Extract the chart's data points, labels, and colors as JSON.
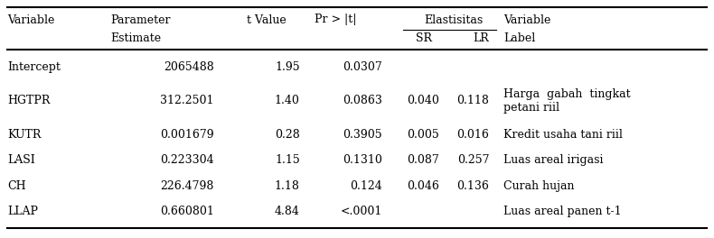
{
  "header_row1": [
    "Variable",
    "Parameter",
    "t Value",
    "Pr > |t|",
    "Elastisitas",
    "",
    "Variable"
  ],
  "header_row2": [
    "",
    "Estimate",
    "",
    "",
    "SR",
    "LR",
    "Label"
  ],
  "rows": [
    [
      "Intercept",
      "2065488",
      "1.95",
      "0.0307",
      "",
      "",
      ""
    ],
    [
      "HGTPR",
      "312.2501",
      "1.40",
      "0.0863",
      "0.040",
      "0.118",
      "Harga  gabah  tingkat\npetani riil"
    ],
    [
      "KUTR",
      "0.001679",
      "0.28",
      "0.3905",
      "0.005",
      "0.016",
      "Kredit usaha tani riil"
    ],
    [
      "LASI",
      "0.223304",
      "1.15",
      "0.1310",
      "0.087",
      "0.257",
      "Luas areal irigasi"
    ],
    [
      "CH",
      "226.4798",
      "1.18",
      "0.124",
      "0.046",
      "0.136",
      "Curah hujan"
    ],
    [
      "LLAP",
      "0.660801",
      "4.84",
      "<.0001",
      "",
      "",
      "Luas areal panen t-1"
    ]
  ],
  "bg_color": "#ffffff",
  "text_color": "#000000",
  "font_size": 9.0
}
